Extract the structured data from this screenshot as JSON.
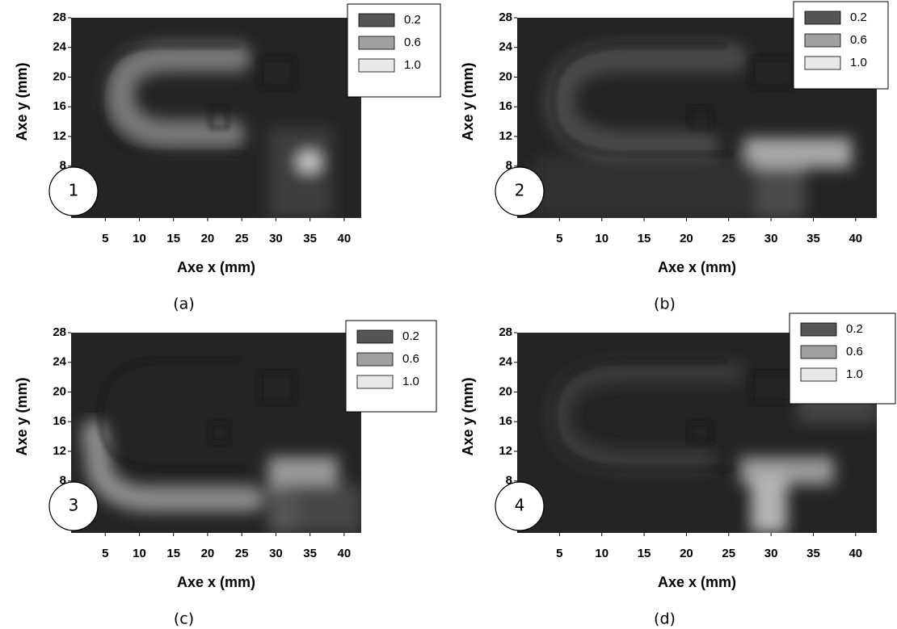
{
  "chart_data": [
    {
      "type": "heatmap",
      "panel_label": "(a)",
      "marker": "1",
      "xlabel": "Axe x (mm)",
      "ylabel": "Axe y (mm)",
      "xlim": [
        0,
        42.5
      ],
      "ylim": [
        1,
        28
      ],
      "xticks": [
        5,
        10,
        15,
        20,
        25,
        30,
        35,
        40
      ],
      "yticks": [
        8,
        12,
        16,
        20,
        24,
        28
      ],
      "legend": [
        {
          "value": 0.2,
          "label": "0.2",
          "color": "#555555"
        },
        {
          "value": 0.6,
          "label": "0.6",
          "color": "#a0a0a0"
        },
        {
          "value": 1,
          "label": "1.0",
          "color": "#e8e8e8"
        }
      ]
    },
    {
      "type": "heatmap",
      "panel_label": "(b)",
      "marker": "2",
      "xlabel": "Axe x (mm)",
      "ylabel": "Axe y (mm)",
      "xlim": [
        0,
        42.5
      ],
      "ylim": [
        1,
        28
      ],
      "xticks": [
        5,
        10,
        15,
        20,
        25,
        30,
        35,
        40
      ],
      "yticks": [
        8,
        12,
        16,
        20,
        24,
        28
      ],
      "legend": [
        {
          "value": 0.2,
          "label": "0.2",
          "color": "#555555"
        },
        {
          "value": 0.6,
          "label": "0.6",
          "color": "#a0a0a0"
        },
        {
          "value": 1,
          "label": "1.0",
          "color": "#e8e8e8"
        }
      ]
    },
    {
      "type": "heatmap",
      "panel_label": "(c)",
      "marker": "3",
      "xlabel": "Axe x (mm)",
      "ylabel": "Axe y (mm)",
      "xlim": [
        0,
        42.5
      ],
      "ylim": [
        1,
        28
      ],
      "xticks": [
        5,
        10,
        15,
        20,
        25,
        30,
        35,
        40
      ],
      "yticks": [
        8,
        12,
        16,
        20,
        24,
        28
      ],
      "legend": [
        {
          "value": 0.2,
          "label": "0.2",
          "color": "#555555"
        },
        {
          "value": 0.6,
          "label": "0.6",
          "color": "#a0a0a0"
        },
        {
          "value": 1,
          "label": "1.0",
          "color": "#e8e8e8"
        }
      ]
    },
    {
      "type": "heatmap",
      "panel_label": "(d)",
      "marker": "4",
      "xlabel": "Axe x (mm)",
      "ylabel": "Axe y (mm)",
      "xlim": [
        0,
        42.5
      ],
      "ylim": [
        1,
        28
      ],
      "xticks": [
        5,
        10,
        15,
        20,
        25,
        30,
        35,
        40
      ],
      "yticks": [
        8,
        12,
        16,
        20,
        24,
        28
      ],
      "legend": [
        {
          "value": 0.2,
          "label": "0.2",
          "color": "#555555"
        },
        {
          "value": 0.6,
          "label": "0.6",
          "color": "#a0a0a0"
        },
        {
          "value": 1,
          "label": "1.0",
          "color": "#e8e8e8"
        }
      ]
    }
  ]
}
